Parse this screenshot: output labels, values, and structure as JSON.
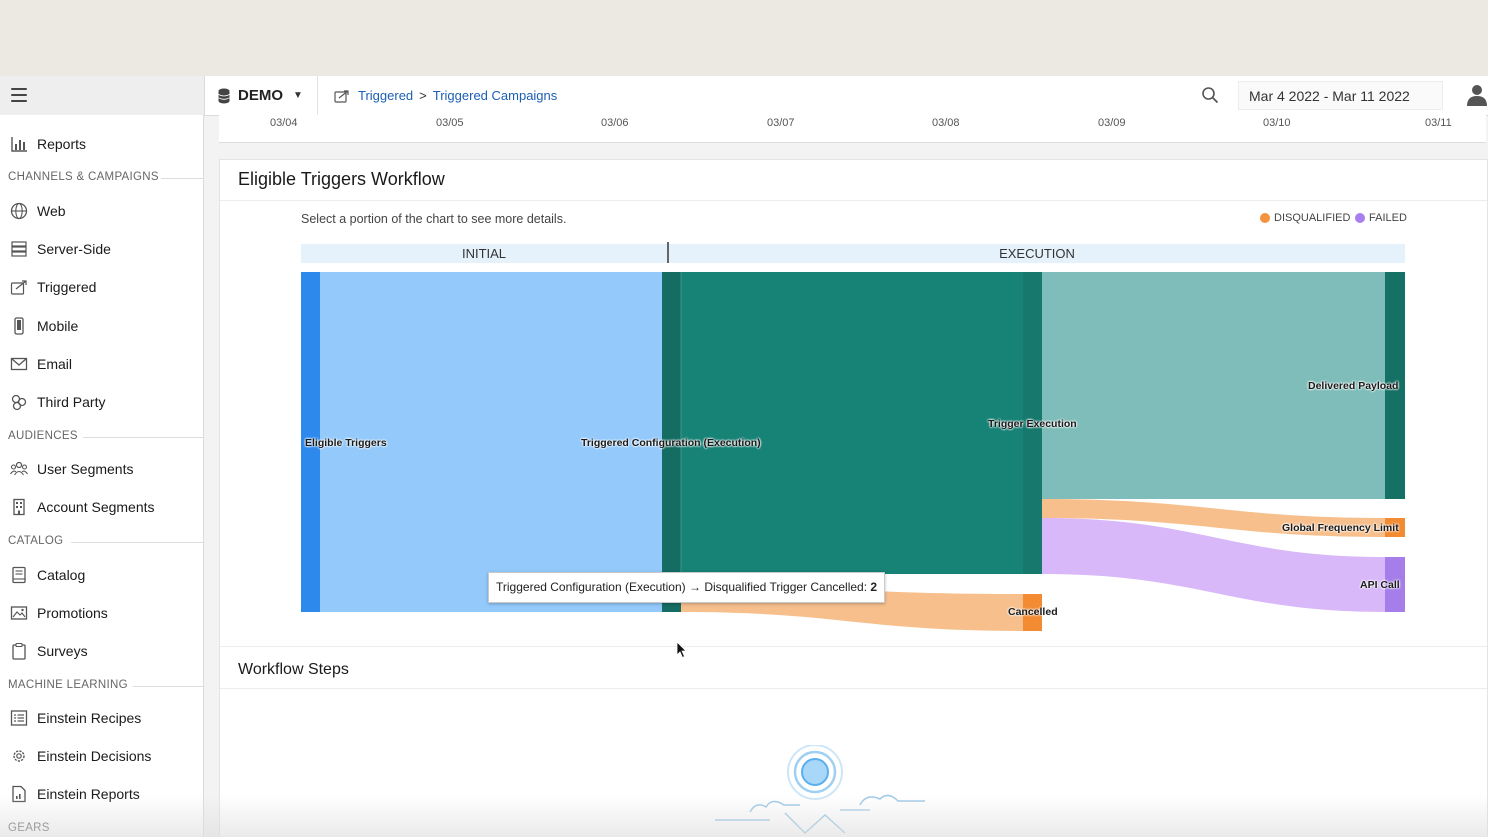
{
  "header": {
    "dataset": "DEMO",
    "breadcrumb": {
      "parent": "Triggered",
      "separator": ">",
      "current": "Triggered Campaigns"
    },
    "date_range": "Mar 4 2022 - Mar 11 2022",
    "icons": [
      "hamburger-icon",
      "database-icon",
      "triggered-icon",
      "search-icon",
      "user-icon"
    ]
  },
  "sidebar": {
    "reports": "Reports",
    "sections": {
      "channels": "CHANNELS & CAMPAIGNS",
      "audiences": "AUDIENCES",
      "catalog": "CATALOG",
      "ml": "MACHINE LEARNING",
      "gears": "GEARS"
    },
    "items": {
      "web": "Web",
      "server_side": "Server-Side",
      "triggered": "Triggered",
      "mobile": "Mobile",
      "email": "Email",
      "third_party": "Third Party",
      "user_segments": "User Segments",
      "account_segments": "Account Segments",
      "catalog": "Catalog",
      "promotions": "Promotions",
      "surveys": "Surveys",
      "einstein_recipes": "Einstein Recipes",
      "einstein_decisions": "Einstein Decisions",
      "einstein_reports": "Einstein Reports"
    }
  },
  "timeline": {
    "ticks": [
      "03/04",
      "03/05",
      "03/06",
      "03/07",
      "03/08",
      "03/09",
      "03/10",
      "03/11"
    ]
  },
  "workflow": {
    "title": "Eligible Triggers Workflow",
    "hint": "Select a portion of the chart to see more details.",
    "legend": {
      "disqualified": "DISQUALIFIED",
      "failed": "FAILED",
      "disqualified_color": "#f4923d",
      "failed_color": "#a97ff0"
    },
    "phases": {
      "initial": "INITIAL",
      "execution": "EXECUTION"
    },
    "nodes": {
      "eligible": "Eligible Triggers",
      "config": "Triggered Configuration (Execution)",
      "execution": "Trigger Execution",
      "cancelled": "Cancelled",
      "delivered": "Delivered Payload",
      "gfl": "Global Frequency Limit",
      "api": "API Call"
    },
    "tooltip": {
      "text": "Triggered Configuration (Execution) → Disqualified Trigger Cancelled: ",
      "value": "2"
    }
  },
  "steps": {
    "title": "Workflow Steps"
  }
}
